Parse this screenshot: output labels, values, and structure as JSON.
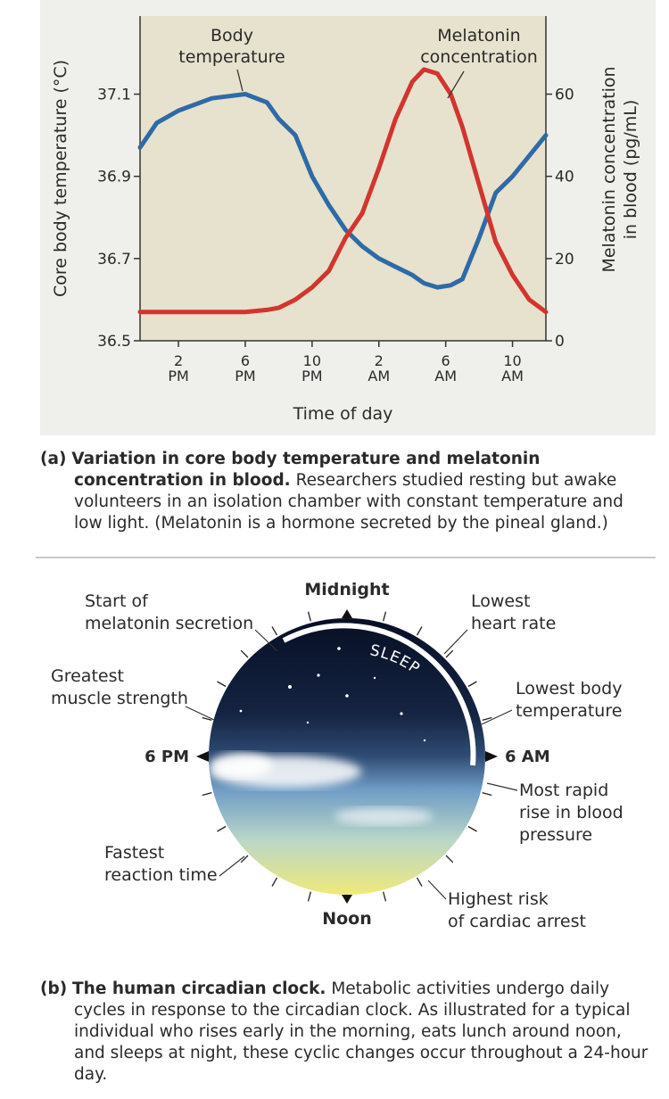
{
  "chart_data": {
    "type": "line",
    "x": [
      11.7,
      12.7,
      14,
      16,
      18,
      19.3,
      20,
      21,
      22,
      23,
      24,
      25,
      26,
      27,
      28,
      28.7,
      29.5,
      30.3,
      31,
      32,
      33,
      34,
      35,
      36
    ],
    "series": [
      {
        "color": "#2e6aa8",
        "values": [
          36.97,
          37.03,
          37.06,
          37.09,
          37.1,
          37.08,
          37.04,
          37.0,
          36.9,
          36.83,
          36.77,
          36.73,
          36.7,
          36.68,
          36.66,
          36.64,
          36.63,
          36.635,
          36.65,
          36.75,
          36.86,
          36.9,
          36.95,
          37.0
        ]
      },
      {
        "color": "#d2352f",
        "axis": "y2",
        "values": [
          7,
          7,
          7,
          7,
          7,
          7.5,
          8,
          10,
          13,
          17,
          25,
          31,
          42,
          54,
          63,
          66,
          65,
          60,
          52,
          38,
          24,
          16,
          10,
          7
        ]
      }
    ],
    "xlim": [
      11.7,
      36
    ],
    "xticks": [
      {
        "value": 14,
        "label": "2 PM"
      },
      {
        "value": 18,
        "label": "6 PM"
      },
      {
        "value": 22,
        "label": "10 PM"
      },
      {
        "value": 26,
        "label": "2 AM"
      },
      {
        "value": 30,
        "label": "6 AM"
      },
      {
        "value": 34,
        "label": "10 AM"
      }
    ],
    "ylim": [
      36.5,
      37.29
    ],
    "yticks": [
      36.5,
      36.7,
      36.9,
      37.1
    ],
    "y2lim": [
      0,
      79
    ],
    "y2ticks": [
      0,
      20,
      40,
      60
    ],
    "xlabel": "Time of day",
    "ylabel": "Core body temperature (°C)",
    "y2label": [
      "Melatonin concentration",
      "in blood (pg/mL)"
    ],
    "annotations": [
      {
        "text": [
          "Body",
          "temperature"
        ]
      },
      {
        "text": [
          "Melatonin",
          "concentration"
        ]
      }
    ],
    "background": "#e7e2cd"
  },
  "caption_a": {
    "label": "(a)",
    "title": "Variation in core body temperature and melatonin concentration in blood.",
    "text": "Researchers studied resting but awake volunteers in an isolation chamber with constant temperature and low light. (Melatonin is a hormone secreted by the pineal gland.)"
  },
  "clock": {
    "top": "Midnight",
    "bottom": "Noon",
    "left": "6 PM",
    "right": "6 AM",
    "sleep": "SLEEP",
    "events": [
      {
        "lines": [
          "Start of",
          "melatonin secretion"
        ]
      },
      {
        "lines": [
          "Lowest",
          "heart rate"
        ]
      },
      {
        "lines": [
          "Greatest",
          "muscle strength"
        ]
      },
      {
        "lines": [
          "Lowest body",
          "temperature"
        ]
      },
      {
        "lines": [
          "Most rapid",
          "rise in blood",
          "pressure"
        ]
      },
      {
        "lines": [
          "Fastest",
          "reaction time"
        ]
      },
      {
        "lines": [
          "Highest risk",
          "of cardiac arrest"
        ]
      }
    ]
  },
  "caption_b": {
    "label": "(b)",
    "title": "The human circadian clock.",
    "text": "Metabolic activities undergo daily cycles in response to the circadian clock. As illustrated for a typical individual who rises early in the morning, eats lunch around noon, and sleeps at night, these cyclic changes occur throughout a 24-hour day."
  }
}
